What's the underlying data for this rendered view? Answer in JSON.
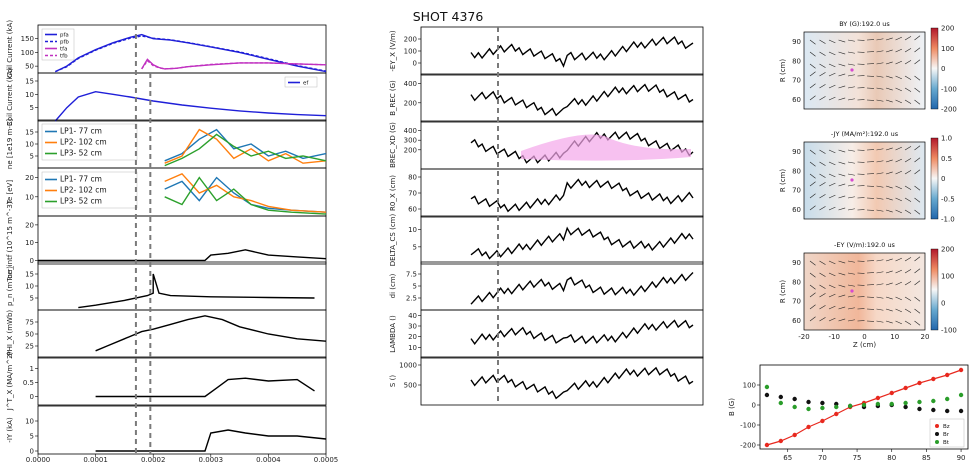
{
  "figure": {
    "title": "SHOT 4376"
  },
  "colors": {
    "pfa": "#1f1fd8",
    "pfb": "#1f1fd8",
    "tfa": "#c030c0",
    "tfb": "#c030c0",
    "ef": "#1f1fd8",
    "LP1": "#1f77b4",
    "LP2": "#ff7f0e",
    "LP3": "#2ca02c",
    "black": "#000000",
    "fit": "#f3a6ea",
    "Bz": "#e8281e",
    "Br": "#111111",
    "Bt": "#2a9d2a",
    "marker": "#7a7a7a"
  },
  "chart_data": [
    {
      "type": "line",
      "column": "left",
      "xlim": [
        0,
        0.0005
      ],
      "xticks": [
        "0.0000",
        "0.0001",
        "0.0002",
        "0.0003",
        "0.0004",
        "0.0005"
      ],
      "panels": [
        {
          "ylabel": "Coil Current (kA)",
          "ylim": [
            25,
            200
          ],
          "yticks": [
            50,
            100,
            150
          ],
          "legend": [
            "pfa",
            "pfb",
            "tfa",
            "tfb"
          ],
          "series": [
            {
              "name": "pfa",
              "x": [
                3e-05,
                5e-05,
                7e-05,
                0.0001,
                0.00013,
                0.00016,
                0.00018,
                0.0002,
                0.00023,
                0.00026,
                0.0003,
                0.00035,
                0.0004,
                0.00045,
                0.0005
              ],
              "y": [
                30,
                50,
                80,
                110,
                135,
                155,
                165,
                150,
                145,
                135,
                120,
                100,
                75,
                50,
                30
              ]
            },
            {
              "name": "pfb",
              "x": [
                3e-05,
                5e-05,
                7e-05,
                0.0001,
                0.00013,
                0.00016,
                0.00018,
                0.0002,
                0.00023,
                0.00026,
                0.0003,
                0.00035,
                0.0004,
                0.00045,
                0.0005
              ],
              "y": [
                30,
                48,
                78,
                108,
                133,
                152,
                160,
                152,
                146,
                136,
                121,
                102,
                77,
                52,
                32
              ]
            },
            {
              "name": "tfa",
              "x": [
                0.00018,
                0.00019,
                0.0002,
                0.00021,
                0.00022,
                0.00024,
                0.00026,
                0.0003,
                0.00035,
                0.0004,
                0.00045,
                0.0005
              ],
              "y": [
                40,
                75,
                55,
                45,
                40,
                42,
                48,
                55,
                62,
                62,
                58,
                55
              ]
            },
            {
              "name": "tfb",
              "x": [
                0.00018,
                0.00019,
                0.0002,
                0.00021,
                0.00022,
                0.00024,
                0.00026,
                0.0003,
                0.00035,
                0.0004,
                0.00045,
                0.0005
              ],
              "y": [
                40,
                70,
                52,
                44,
                40,
                42,
                48,
                56,
                62,
                62,
                58,
                55
              ]
            }
          ]
        },
        {
          "ylabel": "Coil Current (kA)",
          "ylim": [
            0,
            18
          ],
          "yticks": [
            5,
            10,
            15
          ],
          "legend": [
            "ef"
          ],
          "series": [
            {
              "name": "ef",
              "x": [
                3e-05,
                5e-05,
                7e-05,
                0.0001,
                0.00013,
                0.00016,
                0.0002,
                0.00025,
                0.0003,
                0.00035,
                0.0004,
                0.00045,
                0.0005
              ],
              "y": [
                0,
                5,
                9,
                11,
                10,
                9,
                7.5,
                6,
                4.8,
                3.8,
                3,
                2.4,
                2
              ]
            }
          ]
        },
        {
          "ylabel": "ne [1e19 m-3]",
          "ylim": [
            0,
            20
          ],
          "yticks": [
            5,
            10,
            15
          ],
          "legend": [
            "LP1- 77 cm",
            "LP2- 102 cm",
            "LP3- 52 cm"
          ],
          "series": [
            {
              "name": "LP1- 77 cm",
              "x": [
                0.00022,
                0.00025,
                0.00028,
                0.00031,
                0.00034,
                0.00037,
                0.0004,
                0.00043,
                0.00046,
                0.0005
              ],
              "y": [
                3,
                6,
                12,
                16,
                8,
                10,
                5,
                7,
                4,
                6
              ]
            },
            {
              "name": "LP2- 102 cm",
              "x": [
                0.00022,
                0.00025,
                0.00028,
                0.00031,
                0.00034,
                0.00037,
                0.0004,
                0.00043,
                0.00046,
                0.0005
              ],
              "y": [
                2,
                5,
                16,
                12,
                4,
                8,
                3,
                6,
                2,
                3
              ]
            },
            {
              "name": "LP3- 52 cm",
              "x": [
                0.00022,
                0.00025,
                0.00028,
                0.00031,
                0.00034,
                0.00037,
                0.0004,
                0.00043,
                0.00046,
                0.0005
              ],
              "y": [
                1,
                4,
                8,
                14,
                9,
                5,
                7,
                4,
                5,
                3
              ]
            }
          ]
        },
        {
          "ylabel": "Te [eV]",
          "ylim": [
            0,
            25
          ],
          "yticks": [
            10,
            20
          ],
          "legend": [
            "LP1- 77 cm",
            "LP2- 102 cm",
            "LP3- 52 cm"
          ],
          "series": [
            {
              "name": "LP1- 77 cm",
              "x": [
                0.00022,
                0.00025,
                0.00028,
                0.00031,
                0.00034,
                0.00037,
                0.0004,
                0.00044,
                0.0005
              ],
              "y": [
                14,
                18,
                8,
                20,
                12,
                6,
                4,
                3,
                2
              ]
            },
            {
              "name": "LP2- 102 cm",
              "x": [
                0.00022,
                0.00025,
                0.00028,
                0.00031,
                0.00034,
                0.00037,
                0.0004,
                0.00044,
                0.0005
              ],
              "y": [
                18,
                22,
                12,
                16,
                10,
                8,
                5,
                3,
                2
              ]
            },
            {
              "name": "LP3- 52 cm",
              "x": [
                0.00022,
                0.00025,
                0.00028,
                0.00031,
                0.00034,
                0.00037,
                0.0004,
                0.00044,
                0.0005
              ],
              "y": [
                10,
                6,
                20,
                8,
                14,
                6,
                3,
                2,
                1
              ]
            }
          ]
        },
        {
          "ylabel": "ne_intf (10^15 m^-3)",
          "ylim": [
            -2,
            25
          ],
          "yticks": [
            0,
            10,
            20
          ],
          "series": [
            {
              "name": "",
              "x": [
                0,
                0.0001,
                0.0002,
                0.00029,
                0.0003,
                0.00033,
                0.00036,
                0.0004,
                0.00045,
                0.0005
              ],
              "y": [
                0,
                0,
                0,
                0,
                3,
                4,
                6,
                3,
                2,
                1
              ]
            }
          ]
        },
        {
          "ylabel": "p_n (mTorr)",
          "ylim": [
            0,
            20
          ],
          "yticks": [
            5,
            10,
            15
          ],
          "series": [
            {
              "name": "",
              "x": [
                7e-05,
                0.0001,
                0.00015,
                0.00019,
                0.0002,
                0.0002,
                0.00021,
                0.00023,
                0.0003,
                0.0004,
                0.00048
              ],
              "y": [
                1,
                2,
                4,
                6,
                7,
                15,
                7,
                6,
                5.5,
                5.2,
                5
              ]
            }
          ]
        },
        {
          "ylabel": "-PHI_X (mWb)",
          "ylim": [
            0,
            100
          ],
          "yticks": [
            25,
            50,
            75
          ],
          "series": [
            {
              "name": "",
              "x": [
                0.0001,
                0.00012,
                0.00015,
                0.00018,
                0.0002,
                0.00023,
                0.00026,
                0.00029,
                0.00032,
                0.00035,
                0.0004,
                0.00045,
                0.0005
              ],
              "y": [
                15,
                25,
                40,
                55,
                60,
                70,
                80,
                88,
                80,
                65,
                50,
                40,
                35
              ]
            }
          ]
        },
        {
          "ylabel": "J^T_X (MA/m^2)",
          "ylim": [
            -0.3,
            1.4
          ],
          "yticks": [
            0.0,
            0.5,
            1.0
          ],
          "series": [
            {
              "name": "",
              "x": [
                0.0001,
                0.00015,
                0.0002,
                0.00025,
                0.00029,
                0.00031,
                0.00033,
                0.00036,
                0.0004,
                0.00045,
                0.00048
              ],
              "y": [
                0,
                0,
                0,
                0,
                0,
                0.3,
                0.6,
                0.65,
                0.55,
                0.6,
                0.2
              ]
            }
          ]
        },
        {
          "ylabel": "-IY (kA)",
          "ylim": [
            -1,
            15
          ],
          "yticks": [
            0,
            5,
            10
          ],
          "series": [
            {
              "name": "",
              "x": [
                0.0001,
                0.0002,
                0.00029,
                0.0003,
                0.00033,
                0.00036,
                0.0004,
                0.00045,
                0.0005
              ],
              "y": [
                0,
                0,
                0,
                6,
                7,
                6,
                5,
                5,
                4
              ]
            }
          ]
        }
      ],
      "marker_x": [
        0.00017,
        0.000195
      ]
    },
    {
      "type": "line",
      "column": "middle",
      "panels": [
        {
          "ylabel": "-EY_X (V/m)",
          "ylim": [
            -100,
            300
          ],
          "yticks": [
            0,
            100,
            200
          ]
        },
        {
          "ylabel": "B_REC (G)",
          "ylim": [
            0,
            500
          ],
          "yticks": [
            200,
            400
          ]
        },
        {
          "ylabel": "BREC_XD (G)",
          "ylim": [
            0,
            500
          ],
          "yticks": [
            200,
            300,
            400
          ]
        },
        {
          "ylabel": "R0_X (cm)",
          "ylim": [
            55,
            85
          ],
          "yticks": [
            60,
            70,
            80
          ]
        },
        {
          "ylabel": "DELTA_CS (cm)",
          "ylim": [
            0,
            14
          ],
          "yticks": [
            5,
            10
          ]
        },
        {
          "ylabel": "di (cm)",
          "ylim": [
            0,
            10
          ],
          "yticks": [
            2.5,
            5.0,
            7.5
          ]
        },
        {
          "ylabel": "LAMBDA ()",
          "ylim": [
            0,
            45
          ],
          "yticks": [
            10,
            20,
            30,
            40
          ]
        },
        {
          "ylabel": "S ()",
          "ylim": [
            0,
            1200
          ],
          "yticks": [
            500,
            1000
          ]
        }
      ]
    },
    {
      "type": "heatmap",
      "column": "right",
      "maps": [
        {
          "title": "BY (G):192.0 us",
          "cbar_ticks": [
            "200",
            "100",
            "0",
            "-100",
            "-200"
          ],
          "ylabel": "R (cm)",
          "yticks": [
            60,
            70,
            80,
            90
          ]
        },
        {
          "title": "-JY (MA/m²):192.0 us",
          "cbar_ticks": [
            "1.0",
            "0.5",
            "0",
            "-0.5",
            "-1.0"
          ],
          "ylabel": "R (cm)",
          "yticks": [
            60,
            70,
            80,
            90
          ]
        },
        {
          "title": "-EY (V/m):192.0 us",
          "cbar_ticks": [
            "200",
            "100",
            "0",
            "-100"
          ],
          "ylabel": "R (cm)",
          "yticks": [
            60,
            70,
            80,
            90
          ],
          "xlabel": "Z (cm)",
          "xticks": [
            -20,
            -10,
            0,
            10,
            20
          ]
        }
      ]
    },
    {
      "type": "scatter",
      "column": "right-bottom",
      "ylabel": "B (G)",
      "xlim": [
        61,
        91
      ],
      "ylim": [
        -220,
        200
      ],
      "xticks": [
        65,
        70,
        75,
        80,
        85,
        90
      ],
      "yticks": [
        -200,
        -100,
        0,
        100
      ],
      "series": [
        {
          "name": "Bz",
          "x": [
            62,
            64,
            66,
            68,
            70,
            72,
            74,
            76,
            78,
            80,
            82,
            84,
            86,
            88,
            90
          ],
          "y": [
            -200,
            -180,
            -150,
            -110,
            -80,
            -45,
            -10,
            10,
            35,
            60,
            85,
            110,
            130,
            150,
            175
          ]
        },
        {
          "name": "Br",
          "x": [
            62,
            64,
            66,
            68,
            70,
            72,
            74,
            76,
            78,
            80,
            82,
            84,
            86,
            88,
            90
          ],
          "y": [
            50,
            40,
            30,
            15,
            10,
            5,
            -5,
            -10,
            -5,
            0,
            -10,
            -20,
            -25,
            -30,
            -30
          ]
        },
        {
          "name": "Bt",
          "x": [
            62,
            64,
            66,
            68,
            70,
            72,
            74,
            76,
            78,
            80,
            82,
            84,
            86,
            88,
            90
          ],
          "y": [
            90,
            10,
            -10,
            -20,
            -15,
            -10,
            -5,
            0,
            5,
            5,
            10,
            15,
            20,
            30,
            50
          ]
        }
      ]
    }
  ]
}
